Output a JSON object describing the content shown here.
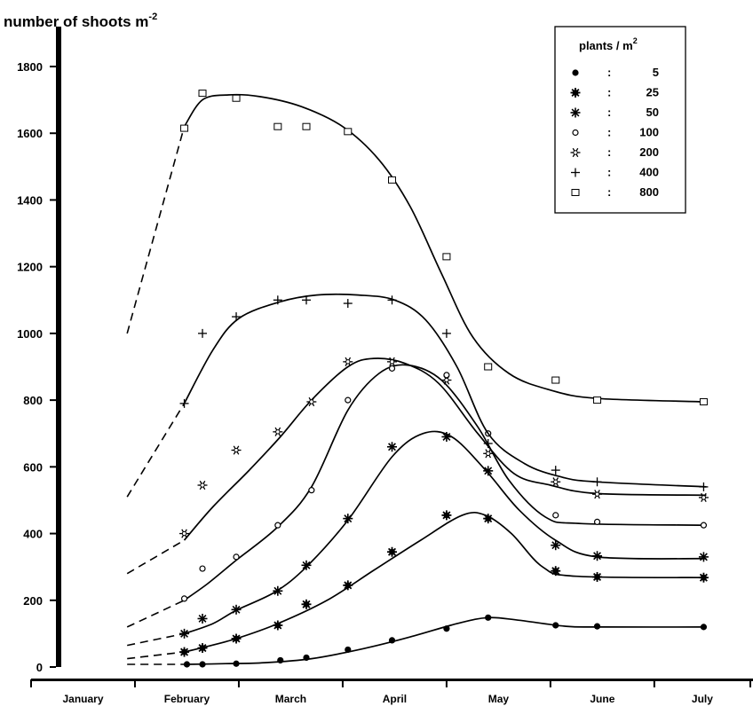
{
  "chart_data": {
    "type": "line",
    "ylabel": "number of shoots m",
    "ylabel_sup": "-2",
    "ylim": [
      0,
      1900
    ],
    "yticks": [
      0,
      200,
      400,
      600,
      800,
      1000,
      1200,
      1400,
      1600,
      1800
    ],
    "xlabel": "",
    "months": [
      "January",
      "February",
      "March",
      "April",
      "May",
      "June",
      "July"
    ],
    "legend": {
      "title": "plants / m",
      "title_sup": "2",
      "placement": "top-right"
    },
    "grid": false,
    "series": [
      {
        "name": "5",
        "marker": "dot",
        "extrapolated": [
          [
            1.85,
            8
          ],
          [
            3.0,
            8
          ]
        ],
        "curve": [
          [
            3.0,
            8
          ],
          [
            3.75,
            10
          ],
          [
            4.5,
            13
          ],
          [
            5.4,
            25
          ],
          [
            6.4,
            55
          ],
          [
            7.3,
            90
          ],
          [
            8.2,
            130
          ],
          [
            8.8,
            148
          ],
          [
            9.4,
            140
          ],
          [
            10.3,
            122
          ],
          [
            11.0,
            120
          ],
          [
            13.0,
            120
          ]
        ],
        "points": [
          [
            3.0,
            8
          ],
          [
            3.3,
            8
          ],
          [
            3.95,
            10
          ],
          [
            4.8,
            20
          ],
          [
            5.3,
            28
          ],
          [
            6.1,
            52
          ],
          [
            6.95,
            80
          ],
          [
            8.0,
            115
          ],
          [
            8.8,
            148
          ],
          [
            10.1,
            125
          ],
          [
            10.9,
            122
          ],
          [
            12.95,
            120
          ]
        ]
      },
      {
        "name": "25",
        "marker": "burst",
        "extrapolated": [
          [
            1.85,
            25
          ],
          [
            2.95,
            45
          ]
        ],
        "curve": [
          [
            2.95,
            45
          ],
          [
            3.35,
            60
          ],
          [
            3.95,
            85
          ],
          [
            4.75,
            130
          ],
          [
            5.7,
            200
          ],
          [
            6.6,
            290
          ],
          [
            7.5,
            380
          ],
          [
            8.3,
            455
          ],
          [
            8.75,
            455
          ],
          [
            9.25,
            400
          ],
          [
            9.85,
            300
          ],
          [
            10.5,
            272
          ],
          [
            13.0,
            268
          ]
        ],
        "points": [
          [
            2.95,
            45
          ],
          [
            3.3,
            57
          ],
          [
            3.95,
            85
          ],
          [
            4.75,
            125
          ],
          [
            5.3,
            188
          ],
          [
            6.1,
            245
          ],
          [
            6.95,
            345
          ],
          [
            8.0,
            455
          ],
          [
            8.8,
            445
          ],
          [
            10.1,
            288
          ],
          [
            10.9,
            270
          ],
          [
            12.95,
            268
          ]
        ]
      },
      {
        "name": "50",
        "marker": "asterisk",
        "extrapolated": [
          [
            1.85,
            65
          ],
          [
            2.95,
            100
          ]
        ],
        "curve": [
          [
            2.95,
            100
          ],
          [
            3.5,
            130
          ],
          [
            3.95,
            170
          ],
          [
            4.7,
            225
          ],
          [
            5.3,
            300
          ],
          [
            6.1,
            440
          ],
          [
            6.95,
            630
          ],
          [
            7.55,
            700
          ],
          [
            8.1,
            690
          ],
          [
            8.75,
            590
          ],
          [
            9.4,
            470
          ],
          [
            10.1,
            380
          ],
          [
            10.9,
            330
          ],
          [
            13.0,
            325
          ]
        ],
        "points": [
          [
            2.95,
            100
          ],
          [
            3.3,
            145
          ],
          [
            3.95,
            172
          ],
          [
            4.75,
            228
          ],
          [
            5.3,
            305
          ],
          [
            6.1,
            445
          ],
          [
            6.95,
            660
          ],
          [
            8.0,
            690
          ],
          [
            8.8,
            588
          ],
          [
            10.1,
            365
          ],
          [
            10.9,
            333
          ],
          [
            12.95,
            330
          ]
        ]
      },
      {
        "name": "100",
        "marker": "circle",
        "extrapolated": [
          [
            1.85,
            120
          ],
          [
            2.95,
            200
          ]
        ],
        "curve": [
          [
            2.95,
            200
          ],
          [
            3.4,
            250
          ],
          [
            3.95,
            320
          ],
          [
            4.75,
            420
          ],
          [
            5.4,
            540
          ],
          [
            6.1,
            770
          ],
          [
            6.7,
            880
          ],
          [
            7.25,
            905
          ],
          [
            7.9,
            860
          ],
          [
            8.6,
            720
          ],
          [
            9.2,
            560
          ],
          [
            9.9,
            450
          ],
          [
            10.6,
            430
          ],
          [
            13.0,
            425
          ]
        ],
        "points": [
          [
            2.95,
            205
          ],
          [
            3.3,
            295
          ],
          [
            3.95,
            330
          ],
          [
            4.75,
            425
          ],
          [
            5.4,
            530
          ],
          [
            6.1,
            800
          ],
          [
            6.95,
            895
          ],
          [
            8.0,
            875
          ],
          [
            8.8,
            700
          ],
          [
            10.1,
            455
          ],
          [
            10.9,
            435
          ],
          [
            12.95,
            425
          ]
        ]
      },
      {
        "name": "200",
        "marker": "star",
        "extrapolated": [
          [
            1.85,
            280
          ],
          [
            2.95,
            380
          ]
        ],
        "curve": [
          [
            2.95,
            380
          ],
          [
            3.5,
            480
          ],
          [
            4.2,
            590
          ],
          [
            4.8,
            690
          ],
          [
            5.4,
            800
          ],
          [
            6.1,
            900
          ],
          [
            6.6,
            925
          ],
          [
            7.2,
            910
          ],
          [
            7.85,
            850
          ],
          [
            8.6,
            700
          ],
          [
            9.3,
            580
          ],
          [
            10.0,
            545
          ],
          [
            10.9,
            520
          ],
          [
            13.0,
            515
          ]
        ],
        "points": [
          [
            2.95,
            400
          ],
          [
            3.3,
            545
          ],
          [
            3.95,
            650
          ],
          [
            4.75,
            705
          ],
          [
            5.4,
            795
          ],
          [
            6.1,
            915
          ],
          [
            6.95,
            915
          ],
          [
            8.0,
            860
          ],
          [
            8.8,
            640
          ],
          [
            10.1,
            555
          ],
          [
            10.9,
            518
          ],
          [
            12.95,
            508
          ]
        ]
      },
      {
        "name": "400",
        "marker": "plus",
        "extrapolated": [
          [
            1.85,
            510
          ],
          [
            2.95,
            790
          ]
        ],
        "curve": [
          [
            2.95,
            790
          ],
          [
            3.5,
            950
          ],
          [
            4.0,
            1045
          ],
          [
            4.8,
            1095
          ],
          [
            5.5,
            1115
          ],
          [
            6.3,
            1115
          ],
          [
            7.0,
            1100
          ],
          [
            7.6,
            1040
          ],
          [
            8.2,
            900
          ],
          [
            8.8,
            700
          ],
          [
            9.5,
            610
          ],
          [
            10.2,
            570
          ],
          [
            10.9,
            555
          ],
          [
            13.0,
            540
          ]
        ],
        "points": [
          [
            2.95,
            790
          ],
          [
            3.3,
            1000
          ],
          [
            3.95,
            1050
          ],
          [
            4.75,
            1100
          ],
          [
            5.3,
            1100
          ],
          [
            6.1,
            1090
          ],
          [
            6.95,
            1100
          ],
          [
            8.0,
            1000
          ],
          [
            8.8,
            670
          ],
          [
            10.1,
            590
          ],
          [
            10.9,
            555
          ],
          [
            12.95,
            540
          ]
        ]
      },
      {
        "name": "800",
        "marker": "square",
        "extrapolated": [
          [
            1.85,
            1000
          ],
          [
            2.95,
            1620
          ]
        ],
        "curve": [
          [
            2.95,
            1620
          ],
          [
            3.3,
            1700
          ],
          [
            3.8,
            1715
          ],
          [
            4.4,
            1710
          ],
          [
            5.2,
            1680
          ],
          [
            6.0,
            1620
          ],
          [
            6.7,
            1520
          ],
          [
            7.3,
            1380
          ],
          [
            7.9,
            1180
          ],
          [
            8.5,
            990
          ],
          [
            9.2,
            880
          ],
          [
            10.0,
            830
          ],
          [
            10.9,
            805
          ],
          [
            13.0,
            795
          ]
        ],
        "points": [
          [
            2.95,
            1615
          ],
          [
            3.3,
            1720
          ],
          [
            3.95,
            1705
          ],
          [
            4.75,
            1620
          ],
          [
            5.3,
            1620
          ],
          [
            6.1,
            1605
          ],
          [
            6.95,
            1460
          ],
          [
            8.0,
            1230
          ],
          [
            8.8,
            900
          ],
          [
            10.1,
            860
          ],
          [
            10.9,
            800
          ],
          [
            12.95,
            795
          ]
        ]
      }
    ]
  }
}
